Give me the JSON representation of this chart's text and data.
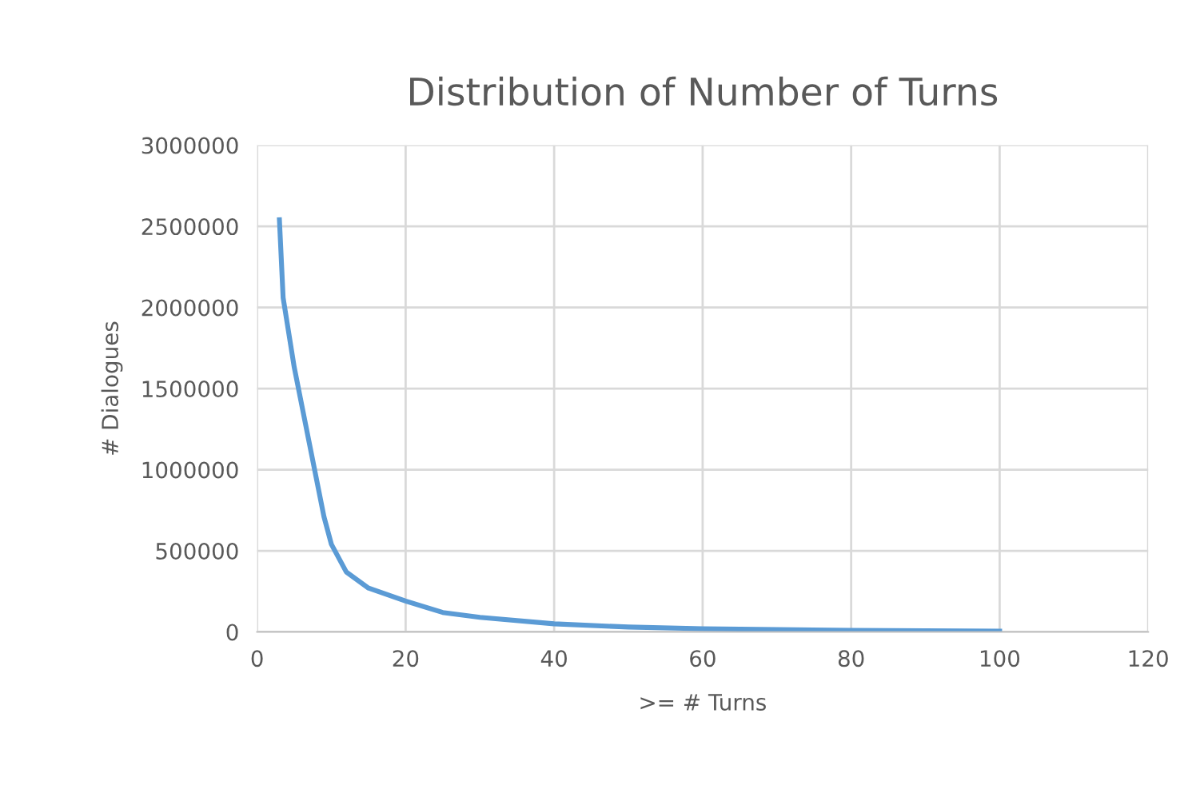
{
  "chart_data": {
    "type": "line",
    "title": "Distribution of Number of Turns",
    "xlabel": ">= # Turns",
    "ylabel": "# Dialogues",
    "x": [
      3,
      3.5,
      5,
      7,
      9,
      10,
      12,
      15,
      20,
      25,
      30,
      40,
      50,
      60,
      70,
      80,
      90,
      100
    ],
    "series": [
      {
        "color": "#5b9bd5",
        "values": [
          2540000,
          2060000,
          1630000,
          1170000,
          710000,
          540000,
          370000,
          270000,
          190000,
          120000,
          90000,
          50000,
          30000,
          20000,
          15000,
          10000,
          7000,
          5000
        ]
      }
    ],
    "xlim": [
      0,
      120
    ],
    "xticks": [
      0,
      20,
      40,
      60,
      80,
      100,
      120
    ],
    "ylim": [
      0,
      3000000
    ],
    "yticks": [
      0,
      500000,
      1000000,
      1500000,
      2000000,
      2500000,
      3000000
    ],
    "grid": true,
    "marker": "none",
    "line_style": "solid"
  }
}
